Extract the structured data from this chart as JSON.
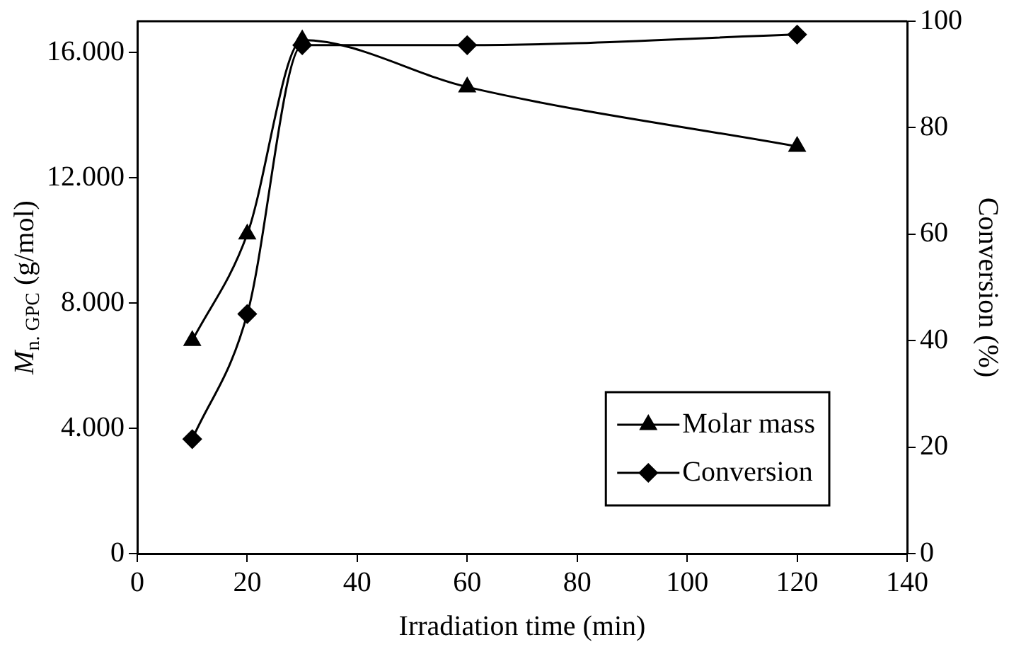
{
  "chart_data": {
    "type": "line",
    "xlabel": "Irradiation time (min)",
    "ylabel": "M$_{n. GPC}$ (g/mol)",
    "y2label": "Conversion (%)",
    "x": [
      10,
      20,
      30,
      60,
      120
    ],
    "series": [
      {
        "name": "Molar mass",
        "color": "#000000",
        "marker": "triangle",
        "values": [
          6800,
          10200,
          16400,
          14900,
          13000
        ]
      },
      {
        "name": "Conversion",
        "color": "#000000",
        "marker": "diamond",
        "axis": "y2",
        "values": [
          21.5,
          45,
          95.5,
          95.5,
          97.5
        ]
      }
    ],
    "xlim": [
      0,
      140
    ],
    "xticks": [
      0,
      20,
      40,
      60,
      80,
      100,
      120,
      140
    ],
    "ylim": [
      0,
      17000
    ],
    "yticks": [
      0,
      {
        "value": 4000,
        "label": "4.000"
      },
      {
        "value": 8000,
        "label": "8.000"
      },
      {
        "value": 12000,
        "label": "12.000"
      },
      {
        "value": 16000,
        "label": "16.000"
      }
    ],
    "y2lim": [
      0,
      100
    ],
    "y2ticks": [
      0,
      20,
      40,
      60,
      80,
      100
    ],
    "grid": false,
    "legend": "bottom right",
    "line_style": "solid"
  }
}
